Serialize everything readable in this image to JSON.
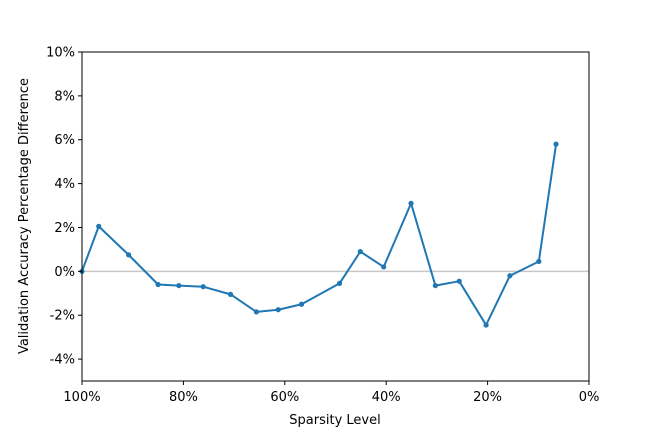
{
  "chart_data": {
    "type": "line",
    "xlabel": "Sparsity Level",
    "ylabel": "Validation Accuracy Percentage Difference",
    "xlim": [
      100,
      0
    ],
    "ylim": [
      -5,
      10
    ],
    "x_ticks": [
      100,
      80,
      60,
      40,
      20,
      0
    ],
    "x_tick_labels": [
      "100%",
      "80%",
      "60%",
      "40%",
      "20%",
      "0%"
    ],
    "y_ticks": [
      -4,
      -2,
      0,
      2,
      4,
      6,
      8,
      10
    ],
    "y_tick_labels": [
      "-4%",
      "-2%",
      "0%",
      "2%",
      "4%",
      "6%",
      "8%",
      "10%"
    ],
    "reference_line": {
      "y": 0,
      "color": "#c8c8c8"
    },
    "grid": false,
    "series": [
      {
        "color": "#1f77b4",
        "x": [
          100,
          96.7,
          90.8,
          85.0,
          80.9,
          76.1,
          70.7,
          65.6,
          61.3,
          56.7,
          49.2,
          45.1,
          40.5,
          35.1,
          30.3,
          25.6,
          20.3,
          15.6,
          9.9,
          6.5
        ],
        "y": [
          0.0,
          2.05,
          0.75,
          -0.6,
          -0.65,
          -0.7,
          -1.05,
          -1.85,
          -1.75,
          -1.5,
          -0.55,
          0.9,
          0.2,
          3.1,
          -0.65,
          -0.45,
          -2.45,
          -0.2,
          0.45,
          5.8
        ]
      }
    ]
  }
}
